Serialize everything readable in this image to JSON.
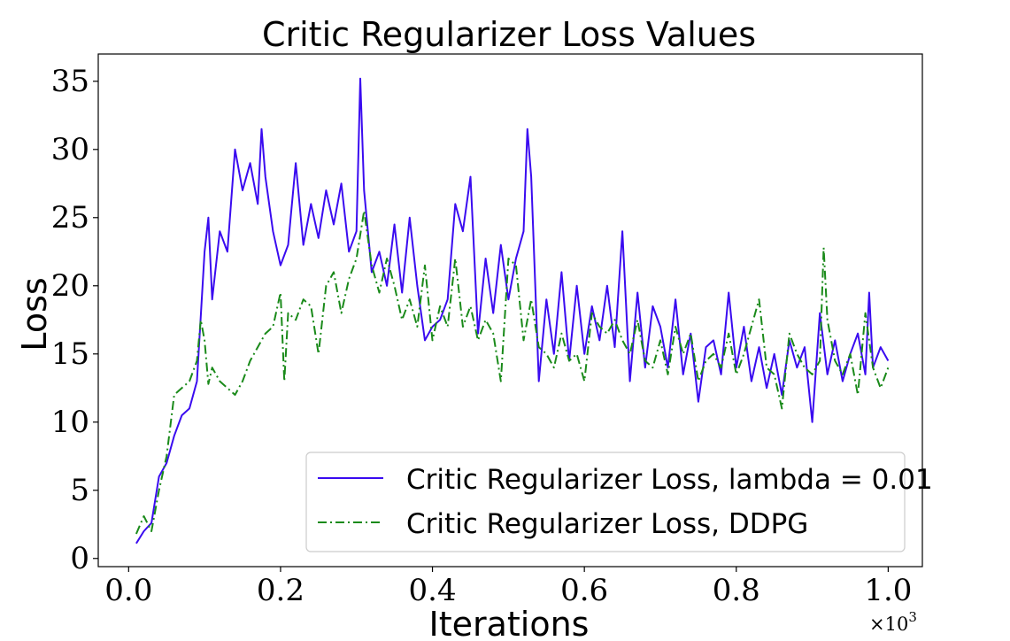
{
  "chart_data": {
    "type": "line",
    "title": "Critic Regularizer Loss Values",
    "xlabel": "Iterations",
    "ylabel": "Loss",
    "x_multiplier_label": "×10",
    "x_multiplier_exp": "3",
    "xlim": [
      -0.04,
      1.045
    ],
    "ylim": [
      -0.6,
      37
    ],
    "x_ticks": [
      0.0,
      0.2,
      0.4,
      0.6,
      0.8,
      1.0
    ],
    "x_tick_labels": [
      "0.0",
      "0.2",
      "0.4",
      "0.6",
      "0.8",
      "1.0"
    ],
    "y_ticks": [
      0,
      5,
      10,
      15,
      20,
      25,
      30,
      35
    ],
    "y_tick_labels": [
      "0",
      "5",
      "10",
      "15",
      "20",
      "25",
      "30",
      "35"
    ],
    "grid": false,
    "legend_position": "lower-right",
    "series": [
      {
        "name": "Critic Regularizer Loss, lambda = 0.01",
        "color": "#3a0bf0",
        "dash": "solid",
        "points": [
          [
            0.01,
            1.1
          ],
          [
            0.02,
            2.0
          ],
          [
            0.03,
            2.6
          ],
          [
            0.04,
            6.0
          ],
          [
            0.05,
            7.0
          ],
          [
            0.06,
            9.0
          ],
          [
            0.07,
            10.5
          ],
          [
            0.08,
            11.0
          ],
          [
            0.09,
            13.0
          ],
          [
            0.1,
            22.5
          ],
          [
            0.105,
            25.0
          ],
          [
            0.11,
            19.0
          ],
          [
            0.12,
            24.0
          ],
          [
            0.13,
            22.5
          ],
          [
            0.14,
            30.0
          ],
          [
            0.15,
            27.0
          ],
          [
            0.16,
            29.0
          ],
          [
            0.17,
            26.0
          ],
          [
            0.175,
            31.5
          ],
          [
            0.18,
            28.0
          ],
          [
            0.19,
            24.0
          ],
          [
            0.2,
            21.5
          ],
          [
            0.21,
            23.0
          ],
          [
            0.22,
            29.0
          ],
          [
            0.23,
            23.0
          ],
          [
            0.24,
            26.0
          ],
          [
            0.25,
            23.5
          ],
          [
            0.26,
            27.0
          ],
          [
            0.27,
            24.5
          ],
          [
            0.28,
            27.5
          ],
          [
            0.29,
            22.5
          ],
          [
            0.3,
            24.0
          ],
          [
            0.305,
            35.2
          ],
          [
            0.31,
            27.0
          ],
          [
            0.32,
            21.0
          ],
          [
            0.33,
            22.5
          ],
          [
            0.34,
            20.0
          ],
          [
            0.35,
            24.5
          ],
          [
            0.36,
            19.5
          ],
          [
            0.37,
            25.0
          ],
          [
            0.38,
            20.0
          ],
          [
            0.39,
            16.0
          ],
          [
            0.4,
            17.0
          ],
          [
            0.41,
            17.5
          ],
          [
            0.42,
            19.0
          ],
          [
            0.43,
            26.0
          ],
          [
            0.44,
            24.0
          ],
          [
            0.45,
            28.0
          ],
          [
            0.46,
            16.5
          ],
          [
            0.47,
            22.0
          ],
          [
            0.48,
            18.0
          ],
          [
            0.49,
            23.0
          ],
          [
            0.5,
            19.0
          ],
          [
            0.51,
            22.0
          ],
          [
            0.52,
            24.0
          ],
          [
            0.525,
            31.5
          ],
          [
            0.53,
            28.0
          ],
          [
            0.54,
            13.0
          ],
          [
            0.55,
            19.0
          ],
          [
            0.56,
            15.0
          ],
          [
            0.57,
            21.0
          ],
          [
            0.58,
            14.5
          ],
          [
            0.59,
            20.0
          ],
          [
            0.6,
            15.0
          ],
          [
            0.61,
            18.5
          ],
          [
            0.62,
            16.0
          ],
          [
            0.63,
            20.0
          ],
          [
            0.64,
            15.5
          ],
          [
            0.65,
            24.0
          ],
          [
            0.66,
            13.0
          ],
          [
            0.67,
            19.5
          ],
          [
            0.68,
            14.0
          ],
          [
            0.69,
            18.5
          ],
          [
            0.7,
            17.0
          ],
          [
            0.71,
            14.0
          ],
          [
            0.72,
            19.0
          ],
          [
            0.73,
            13.5
          ],
          [
            0.74,
            16.5
          ],
          [
            0.75,
            11.5
          ],
          [
            0.76,
            15.5
          ],
          [
            0.77,
            16.0
          ],
          [
            0.78,
            13.5
          ],
          [
            0.79,
            19.5
          ],
          [
            0.8,
            14.0
          ],
          [
            0.81,
            17.0
          ],
          [
            0.82,
            13.0
          ],
          [
            0.83,
            15.5
          ],
          [
            0.84,
            12.5
          ],
          [
            0.85,
            15.0
          ],
          [
            0.86,
            12.0
          ],
          [
            0.87,
            16.0
          ],
          [
            0.88,
            14.0
          ],
          [
            0.89,
            15.5
          ],
          [
            0.9,
            10.0
          ],
          [
            0.91,
            18.0
          ],
          [
            0.92,
            13.5
          ],
          [
            0.93,
            16.0
          ],
          [
            0.94,
            13.0
          ],
          [
            0.95,
            15.0
          ],
          [
            0.96,
            16.5
          ],
          [
            0.97,
            13.5
          ],
          [
            0.975,
            19.5
          ],
          [
            0.98,
            14.0
          ],
          [
            0.99,
            15.5
          ],
          [
            1.0,
            14.5
          ]
        ]
      },
      {
        "name": "Critic Regularizer Loss, DDPG",
        "color": "#1a8a1a",
        "dash": "dashdot",
        "points": [
          [
            0.01,
            1.8
          ],
          [
            0.02,
            3.1
          ],
          [
            0.03,
            2.0
          ],
          [
            0.04,
            5.0
          ],
          [
            0.05,
            7.5
          ],
          [
            0.06,
            12.0
          ],
          [
            0.07,
            12.5
          ],
          [
            0.08,
            13.0
          ],
          [
            0.09,
            14.5
          ],
          [
            0.095,
            17.5
          ],
          [
            0.1,
            16.0
          ],
          [
            0.105,
            12.8
          ],
          [
            0.11,
            14.0
          ],
          [
            0.12,
            13.0
          ],
          [
            0.13,
            12.5
          ],
          [
            0.14,
            12.0
          ],
          [
            0.15,
            13.0
          ],
          [
            0.16,
            14.5
          ],
          [
            0.17,
            15.5
          ],
          [
            0.18,
            16.5
          ],
          [
            0.19,
            17.0
          ],
          [
            0.2,
            19.5
          ],
          [
            0.205,
            13.0
          ],
          [
            0.21,
            18.0
          ],
          [
            0.22,
            17.5
          ],
          [
            0.23,
            19.0
          ],
          [
            0.24,
            18.5
          ],
          [
            0.25,
            15.0
          ],
          [
            0.26,
            20.0
          ],
          [
            0.27,
            21.0
          ],
          [
            0.28,
            18.0
          ],
          [
            0.29,
            20.5
          ],
          [
            0.3,
            22.0
          ],
          [
            0.31,
            25.5
          ],
          [
            0.32,
            21.5
          ],
          [
            0.33,
            19.5
          ],
          [
            0.34,
            22.0
          ],
          [
            0.35,
            20.0
          ],
          [
            0.36,
            17.5
          ],
          [
            0.37,
            19.0
          ],
          [
            0.38,
            17.0
          ],
          [
            0.39,
            21.5
          ],
          [
            0.4,
            16.0
          ],
          [
            0.41,
            18.5
          ],
          [
            0.42,
            17.0
          ],
          [
            0.43,
            22.0
          ],
          [
            0.44,
            17.0
          ],
          [
            0.45,
            18.5
          ],
          [
            0.46,
            16.0
          ],
          [
            0.47,
            17.5
          ],
          [
            0.48,
            16.5
          ],
          [
            0.49,
            13.0
          ],
          [
            0.5,
            22.0
          ],
          [
            0.51,
            21.5
          ],
          [
            0.52,
            16.0
          ],
          [
            0.53,
            19.0
          ],
          [
            0.54,
            15.5
          ],
          [
            0.55,
            15.0
          ],
          [
            0.56,
            14.0
          ],
          [
            0.57,
            16.5
          ],
          [
            0.58,
            14.5
          ],
          [
            0.59,
            15.0
          ],
          [
            0.6,
            13.0
          ],
          [
            0.61,
            18.0
          ],
          [
            0.62,
            17.0
          ],
          [
            0.63,
            16.5
          ],
          [
            0.64,
            17.5
          ],
          [
            0.65,
            16.0
          ],
          [
            0.66,
            15.0
          ],
          [
            0.67,
            17.5
          ],
          [
            0.68,
            14.5
          ],
          [
            0.69,
            14.0
          ],
          [
            0.7,
            16.0
          ],
          [
            0.71,
            13.5
          ],
          [
            0.72,
            17.0
          ],
          [
            0.73,
            15.0
          ],
          [
            0.74,
            16.5
          ],
          [
            0.75,
            13.0
          ],
          [
            0.76,
            14.5
          ],
          [
            0.77,
            15.0
          ],
          [
            0.78,
            14.0
          ],
          [
            0.79,
            16.5
          ],
          [
            0.8,
            13.5
          ],
          [
            0.81,
            15.0
          ],
          [
            0.82,
            17.0
          ],
          [
            0.83,
            19.0
          ],
          [
            0.84,
            14.0
          ],
          [
            0.85,
            13.5
          ],
          [
            0.86,
            11.0
          ],
          [
            0.87,
            16.5
          ],
          [
            0.88,
            15.0
          ],
          [
            0.89,
            14.0
          ],
          [
            0.9,
            13.5
          ],
          [
            0.91,
            14.5
          ],
          [
            0.915,
            22.8
          ],
          [
            0.92,
            17.5
          ],
          [
            0.93,
            14.5
          ],
          [
            0.94,
            13.5
          ],
          [
            0.95,
            15.0
          ],
          [
            0.96,
            12.0
          ],
          [
            0.97,
            18.0
          ],
          [
            0.98,
            14.0
          ],
          [
            0.99,
            12.5
          ],
          [
            1.0,
            14.0
          ]
        ]
      }
    ]
  }
}
